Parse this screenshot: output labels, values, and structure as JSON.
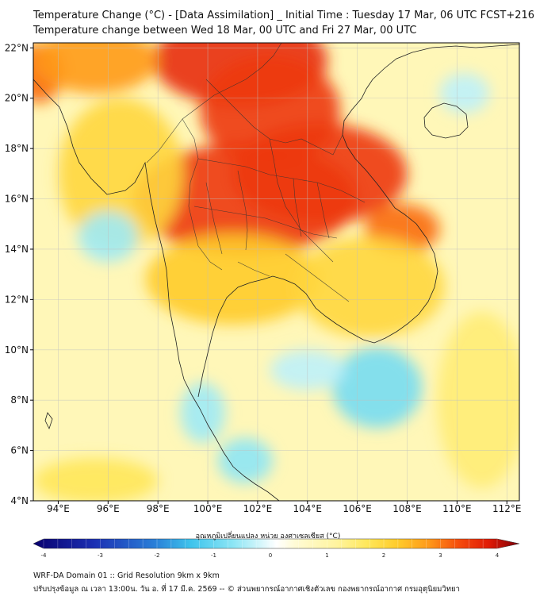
{
  "header": {
    "title_line1": "Temperature Change (°C) - [Data Assimilation] _ Initial Time : Tuesday 17 Mar, 06 UTC FCST+216",
    "title_line2": "Temperature change between Wed 18 Mar, 00 UTC and Fri 27 Mar, 00 UTC"
  },
  "map": {
    "lat_labels": [
      "22°N",
      "20°N",
      "18°N",
      "16°N",
      "14°N",
      "12°N",
      "10°N",
      "8°N",
      "6°N",
      "4°N"
    ],
    "lon_labels": [
      "94°E",
      "96°E",
      "98°E",
      "100°E",
      "102°E",
      "104°E",
      "106°E",
      "108°E",
      "110°E",
      "112°E"
    ],
    "lat_values": [
      22,
      20,
      18,
      16,
      14,
      12,
      10,
      8,
      6,
      4
    ],
    "lon_values": [
      94,
      96,
      98,
      100,
      102,
      104,
      106,
      108,
      110,
      112
    ],
    "extent": {
      "lon_min": 93,
      "lon_max": 112.5,
      "lat_min": 4,
      "lat_max": 22.2
    },
    "field_blobs": [
      {
        "lon": 101.3,
        "lat": 21.5,
        "rx": 3.5,
        "ry": 1.8,
        "value": 3.3
      },
      {
        "lon": 102.5,
        "lat": 19.5,
        "rx": 2.8,
        "ry": 2.2,
        "value": 3.2
      },
      {
        "lon": 101.5,
        "lat": 16.0,
        "rx": 4.5,
        "ry": 2.2,
        "value": 3.2
      },
      {
        "lon": 104.5,
        "lat": 17.0,
        "rx": 3.5,
        "ry": 2.0,
        "value": 3.2
      },
      {
        "lon": 107.8,
        "lat": 14.8,
        "rx": 1.5,
        "ry": 1.0,
        "value": 2.8
      },
      {
        "lon": 93.2,
        "lat": 21.0,
        "rx": 1.0,
        "ry": 1.2,
        "value": 2.8
      },
      {
        "lon": 95.5,
        "lat": 21.5,
        "rx": 2.5,
        "ry": 1.3,
        "value": 2.5
      },
      {
        "lon": 101.0,
        "lat": 12.8,
        "rx": 3.5,
        "ry": 1.8,
        "value": 2.0
      },
      {
        "lon": 106.5,
        "lat": 12.5,
        "rx": 3.0,
        "ry": 2.0,
        "value": 1.8
      },
      {
        "lon": 96.5,
        "lat": 17.0,
        "rx": 2.5,
        "ry": 3.0,
        "value": 1.8
      },
      {
        "lon": 95.5,
        "lat": 4.8,
        "rx": 2.5,
        "ry": 0.9,
        "value": 1.5
      },
      {
        "lon": 111.0,
        "lat": 8.0,
        "rx": 1.8,
        "ry": 3.5,
        "value": 1.3
      },
      {
        "lon": 96.0,
        "lat": 14.5,
        "rx": 1.2,
        "ry": 1.0,
        "value": -0.6
      },
      {
        "lon": 106.8,
        "lat": 8.5,
        "rx": 1.8,
        "ry": 1.6,
        "value": -0.9
      },
      {
        "lon": 101.5,
        "lat": 5.6,
        "rx": 1.1,
        "ry": 0.9,
        "value": -0.7
      },
      {
        "lon": 99.8,
        "lat": 7.5,
        "rx": 0.9,
        "ry": 1.2,
        "value": -0.6
      },
      {
        "lon": 104.0,
        "lat": 9.2,
        "rx": 1.5,
        "ry": 0.8,
        "value": -0.4
      },
      {
        "lon": 110.3,
        "lat": 20.2,
        "rx": 1.0,
        "ry": 0.8,
        "value": -0.4
      }
    ]
  },
  "colorbar": {
    "title": "อุณหภูมิเปลี่ยนแปลง หน่วย องศาเซลเซียส (°C)",
    "tick_labels": [
      "-4",
      "-3",
      "-2",
      "-1",
      "0",
      "1",
      "2",
      "3",
      "4"
    ],
    "tick_values": [
      -4,
      -3,
      -2,
      -1,
      0,
      1,
      2,
      3,
      4
    ],
    "min": -4,
    "max": 4,
    "stops": [
      {
        "v": -4,
        "c": "#08006e"
      },
      {
        "v": -3,
        "c": "#1b2fb3"
      },
      {
        "v": -2,
        "c": "#2a7fd8"
      },
      {
        "v": -1.4,
        "c": "#3ec4ec"
      },
      {
        "v": -0.7,
        "c": "#8ee6f5"
      },
      {
        "v": -0.25,
        "c": "#d6f6fb"
      },
      {
        "v": 0,
        "c": "#ffffff"
      },
      {
        "v": 0.3,
        "c": "#fffbd6"
      },
      {
        "v": 1.0,
        "c": "#fff49e"
      },
      {
        "v": 1.5,
        "c": "#ffe75a"
      },
      {
        "v": 2.0,
        "c": "#ffcb2a"
      },
      {
        "v": 2.5,
        "c": "#ff9a1a"
      },
      {
        "v": 3.0,
        "c": "#f54c0c"
      },
      {
        "v": 3.5,
        "c": "#e01a06"
      },
      {
        "v": 4.0,
        "c": "#7a0008"
      }
    ]
  },
  "footer": {
    "line1": "WRF-DA Domain 01 :: Grid Resolution 9km x 9km",
    "line2": "ปรับปรุงข้อมูล ณ เวลา 13:00น. วัน อ. ที่ 17 มี.ค. 2569 -- © ส่วนพยากรณ์อากาศเชิงตัวเลข กองพยากรณ์อากาศ กรมอุตุนิยมวิทยา"
  },
  "colors": {
    "background": "#ffffff",
    "base_field": "#fff7b8",
    "grid": "#bfbfbf",
    "coast": "#222222"
  }
}
